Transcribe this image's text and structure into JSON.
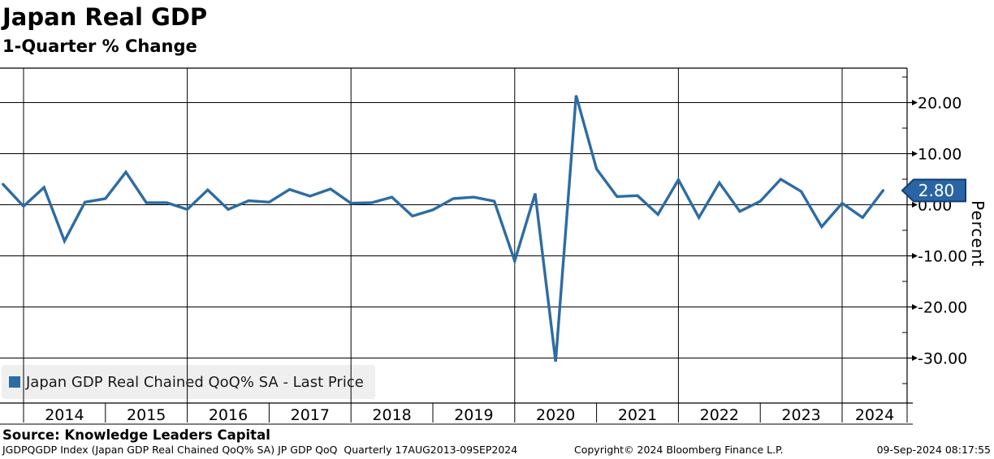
{
  "header": {
    "title": "Japan Real GDP",
    "subtitle": "1-Quarter % Change"
  },
  "legend": {
    "label": "Japan GDP Real Chained QoQ% SA - Last Price",
    "swatch_color": "#2d6ca3"
  },
  "y_axis": {
    "label": "Percent",
    "ticks": [
      {
        "value": 20,
        "label": "20.00"
      },
      {
        "value": 10,
        "label": "10.00"
      },
      {
        "value": 0,
        "label": "0.00"
      },
      {
        "value": -10,
        "label": "-10.00"
      },
      {
        "value": -20,
        "label": "-20.00"
      },
      {
        "value": -30,
        "label": "-30.00"
      }
    ],
    "minor_tick_values": [
      25,
      15,
      5,
      -5,
      -15,
      -25,
      -35
    ],
    "last_price_badge": {
      "value": "2.80",
      "fill": "#2a64a5",
      "border": "#123f70",
      "text_color": "#ffffff"
    }
  },
  "x_axis": {
    "years": [
      "2014",
      "2015",
      "2016",
      "2017",
      "2018",
      "2019",
      "2020",
      "2021",
      "2022",
      "2023",
      "2024"
    ]
  },
  "footer": {
    "source": "Source: Knowledge Leaders Capital",
    "ticker_line": "JGDPQGDP Index (Japan GDP Real Chained QoQ% SA) JP GDP QoQ  Quarterly 17AUG2013-09SEP2024",
    "copyright": "Copyright© 2024 Bloomberg Finance L.P.",
    "timestamp": "09-Sep-2024 08:17:55"
  },
  "chart_data": {
    "type": "line",
    "title": "Japan Real GDP",
    "subtitle": "1-Quarter % Change",
    "ylabel": "Percent",
    "xlabel": "",
    "ylim": [
      -38.5,
      26.5
    ],
    "yticks": [
      20,
      10,
      0,
      -10,
      -20,
      -30
    ],
    "grid": true,
    "legend_position": "bottom-left",
    "series_name": "Japan GDP Real Chained QoQ% SA - Last Price",
    "line_color": "#2d6ca3",
    "last_value_label": "2.80",
    "x": [
      "2013 Q3",
      "2013 Q4",
      "2014 Q1",
      "2014 Q2",
      "2014 Q3",
      "2014 Q4",
      "2015 Q1",
      "2015 Q2",
      "2015 Q3",
      "2015 Q4",
      "2016 Q1",
      "2016 Q2",
      "2016 Q3",
      "2016 Q4",
      "2017 Q1",
      "2017 Q2",
      "2017 Q3",
      "2017 Q4",
      "2018 Q1",
      "2018 Q2",
      "2018 Q3",
      "2018 Q4",
      "2019 Q1",
      "2019 Q2",
      "2019 Q3",
      "2019 Q4",
      "2020 Q1",
      "2020 Q2",
      "2020 Q3",
      "2020 Q4",
      "2021 Q1",
      "2021 Q2",
      "2021 Q3",
      "2021 Q4",
      "2022 Q1",
      "2022 Q2",
      "2022 Q3",
      "2022 Q4",
      "2023 Q1",
      "2023 Q2",
      "2023 Q3",
      "2023 Q4",
      "2024 Q1",
      "2024 Q2"
    ],
    "values": [
      4.0,
      -0.3,
      3.4,
      -7.1,
      0.5,
      1.2,
      6.4,
      0.4,
      0.4,
      -0.9,
      2.9,
      -0.9,
      0.8,
      0.5,
      3.0,
      1.7,
      3.1,
      0.3,
      0.4,
      1.5,
      -2.2,
      -1.0,
      1.2,
      1.5,
      0.7,
      -11.0,
      2.2,
      -30.7,
      21.4,
      7.0,
      1.6,
      1.8,
      -1.9,
      4.9,
      -2.5,
      4.3,
      -1.3,
      0.7,
      5.0,
      2.6,
      -4.3,
      0.3,
      -2.5,
      2.8
    ]
  }
}
